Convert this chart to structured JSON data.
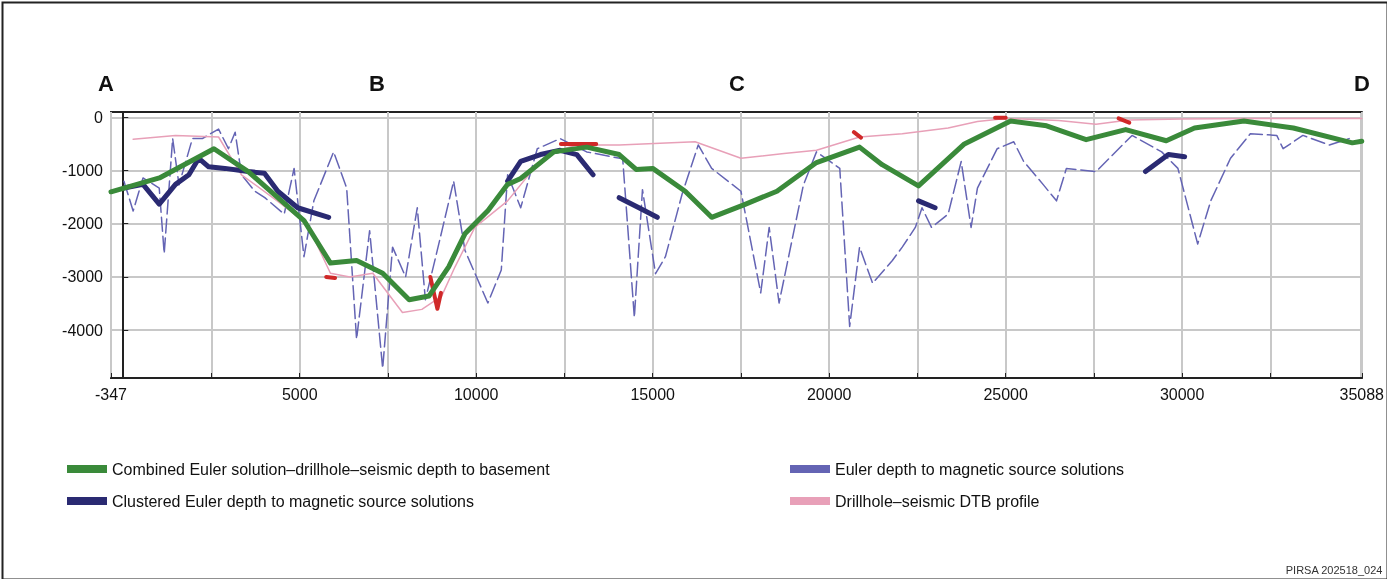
{
  "chart_data": {
    "type": "line",
    "xlim": [
      -347,
      35088
    ],
    "ylim": [
      -4900,
      100
    ],
    "xticks": [
      -347,
      {
        "value": 2500,
        "label": null
      },
      5000,
      {
        "value": 7500,
        "label": null
      },
      10000,
      {
        "value": 12500,
        "label": null
      },
      15000,
      {
        "value": 17500,
        "label": null
      },
      20000,
      {
        "value": 22500,
        "label": null
      },
      25000,
      {
        "value": 27500,
        "label": null
      },
      30000,
      {
        "value": 32500,
        "label": null
      },
      35088
    ],
    "yticks": [
      0,
      -1000,
      -2000,
      -3000,
      -4000
    ],
    "grid": true,
    "legend": "bottom",
    "marker": "none",
    "annotations": [
      "A",
      "B",
      "C",
      "D",
      "PIRSA 202518_024"
    ],
    "series": [
      {
        "name": "Combined Euler solution–drillhole–seismic depth to basement",
        "color": "#3a8a3a",
        "line_style": "solid",
        "x": [
          -347,
          1025,
          2570,
          3540,
          4380,
          5120,
          5870,
          6610,
          7350,
          8100,
          8660,
          9220,
          9680,
          10335,
          10890,
          11260,
          12200,
          13130,
          14050,
          14530,
          15000,
          15920,
          16670,
          17600,
          18520,
          19640,
          20860,
          21500,
          22530,
          23830,
          25140,
          26160,
          27280,
          28400,
          29550,
          30350,
          31750,
          33150,
          34820,
          35088
        ],
        "values": [
          -1400,
          -1140,
          -590,
          -1020,
          -1510,
          -1940,
          -2740,
          -2690,
          -2930,
          -3430,
          -3360,
          -2810,
          -2190,
          -1750,
          -1260,
          -1150,
          -650,
          -560,
          -700,
          -980,
          -960,
          -1390,
          -1880,
          -1640,
          -1390,
          -850,
          -560,
          -890,
          -1290,
          -500,
          -70,
          -160,
          -420,
          -230,
          -440,
          -200,
          -70,
          -200,
          -480,
          -450
        ]
      },
      {
        "name": "Clustered Euler depth to magnetic source solutions",
        "color": "#2a2a72",
        "line_style": "solid",
        "x": [
          20,
          560,
          1020,
          1480,
          1860,
          2140,
          2420,
          2880,
          3540,
          4000,
          4380,
          4940,
          5820,
          8000,
          10890,
          11260,
          11820,
          12380,
          12850,
          13310,
          13700,
          14050,
          14610,
          15130,
          19000,
          22530,
          23000,
          26000,
          28960,
          29610,
          30070
        ],
        "values": [
          -1330,
          -1260,
          -1630,
          -1260,
          -1080,
          -770,
          -930,
          -960,
          -1020,
          -1050,
          -1390,
          -1700,
          -1880,
          null,
          -1200,
          -830,
          -700,
          -620,
          -700,
          -1080,
          null,
          -1510,
          -1700,
          -1880,
          null,
          -1570,
          -1700,
          null,
          -1020,
          -700,
          -740
        ]
      },
      {
        "name": "Euler depth to magnetic source solutions",
        "color": "#6464b4",
        "line_style": "dashed",
        "x": [
          20,
          280,
          560,
          1020,
          1160,
          1400,
          1580,
          1960,
          2240,
          2700,
          2980,
          3170,
          3350,
          3730,
          4010,
          4560,
          4840,
          5120,
          5400,
          5960,
          6330,
          6610,
          6980,
          7350,
          7630,
          8000,
          8330,
          8560,
          8940,
          9360,
          9680,
          10330,
          10710,
          10890,
          11260,
          11730,
          12380,
          13130,
          14150,
          14480,
          14710,
          15080,
          15360,
          15830,
          16290,
          16670,
          17500,
          18060,
          18300,
          18580,
          19270,
          19640,
          20300,
          20580,
          20860,
          21230,
          21790,
          22070,
          22440,
          22630,
          22900,
          23370,
          23740,
          24020,
          24200,
          24760,
          25230,
          25510,
          26070,
          26440,
          26720,
          27560,
          28580,
          29420,
          29880,
          30440,
          30810,
          31370,
          31930,
          32680,
          32860,
          33420,
          34170,
          34730
        ],
        "values": [
          -1200,
          -1760,
          -1140,
          -1330,
          -2560,
          -400,
          -1270,
          -400,
          -400,
          -220,
          -590,
          -280,
          -1080,
          -1390,
          -1510,
          -1820,
          -960,
          -2620,
          -1570,
          -650,
          -1330,
          -4170,
          -2130,
          -4720,
          -2440,
          -3000,
          -1700,
          -3430,
          -2380,
          -1200,
          -2500,
          -3490,
          -2870,
          -1080,
          -1700,
          -590,
          -400,
          -650,
          -780,
          -3760,
          -1360,
          -2940,
          -2620,
          -1450,
          -520,
          -960,
          -1390,
          -3300,
          -2070,
          -3490,
          -1270,
          -650,
          -960,
          -3930,
          -2440,
          -3120,
          -2690,
          -2440,
          -2070,
          -1700,
          -2070,
          -1820,
          -830,
          -2070,
          -1330,
          -590,
          -460,
          -830,
          -1270,
          -1570,
          -960,
          -1020,
          -340,
          -650,
          -960,
          -2380,
          -1570,
          -770,
          -310,
          -340,
          -590,
          -340,
          -520,
          -400
        ]
      },
      {
        "name": "Drillhole–seismic DTB profile",
        "color": "#e8a0b8",
        "line_style": "solid",
        "x": [
          280,
          1480,
          2700,
          3350,
          4380,
          5210,
          5870,
          6420,
          7070,
          7910,
          8460,
          9020,
          9400,
          9960,
          10890,
          11540,
          12200,
          12850,
          14050,
          16200,
          17500,
          18720,
          19640,
          20860,
          22070,
          23370,
          24200,
          25000,
          26500,
          27560,
          28490,
          30000,
          32000,
          35088
        ],
        "values": [
          -410,
          -340,
          -370,
          -1080,
          -1580,
          -2000,
          -2930,
          -3000,
          -2930,
          -3670,
          -3610,
          -3360,
          -2810,
          -2070,
          -1570,
          -1040,
          -650,
          -520,
          -520,
          -460,
          -770,
          -680,
          -620,
          -370,
          -310,
          -200,
          -80,
          -20,
          -60,
          -130,
          -50,
          -30,
          -20,
          -20
        ]
      },
      {
        "color": "#d02828",
        "line_style": "solid",
        "x": [
          5750,
          6000,
          7000,
          8700,
          8900,
          9000,
          10000,
          12400,
          13400,
          17000,
          20700,
          20900,
          22000,
          24700,
          25000,
          26000,
          28200,
          28500
        ],
        "values": [
          -3000,
          -3020,
          null,
          -3000,
          -3600,
          -3300,
          null,
          -500,
          -500,
          null,
          -280,
          -380,
          null,
          -10,
          -10,
          null,
          -20,
          -100
        ]
      }
    ]
  }
}
